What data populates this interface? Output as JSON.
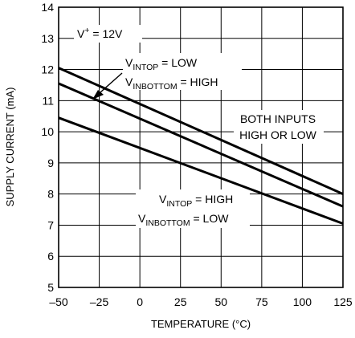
{
  "chart_data": {
    "type": "line",
    "xlabel": "TEMPERATURE (°C)",
    "ylabel": "SUPPLY CURRENT (mA)",
    "xlim": [
      -50,
      125
    ],
    "ylim": [
      5,
      14
    ],
    "xticks": [
      -50,
      -25,
      0,
      25,
      50,
      75,
      100,
      125
    ],
    "yticks": [
      5,
      6,
      7,
      8,
      9,
      10,
      11,
      12,
      13,
      14
    ],
    "grid": true,
    "legend": "none",
    "series": [
      {
        "x": [
          -50,
          125
        ],
        "y": [
          12.05,
          8.0
        ]
      },
      {
        "x": [
          -50,
          125
        ],
        "y": [
          11.55,
          7.6
        ]
      },
      {
        "x": [
          -50,
          125
        ],
        "y": [
          10.45,
          7.05
        ]
      }
    ],
    "annotations": {
      "vplus": {
        "main": "V",
        "sup": "+",
        "rest": " = 12V"
      },
      "top_low": {
        "main": "V",
        "sub": "INTOP",
        "rest": " = LOW"
      },
      "bottom_high": {
        "main": "V",
        "sub": "INBOTTOM",
        "rest": " = HIGH"
      },
      "both_line1": "BOTH INPUTS",
      "both_line2": "HIGH OR LOW",
      "top_high": {
        "main": "V",
        "sub": "INTOP",
        "rest": " = HIGH"
      },
      "bottom_low": {
        "main": "V",
        "sub": "INBOTTOM",
        "rest": " = LOW"
      }
    }
  }
}
